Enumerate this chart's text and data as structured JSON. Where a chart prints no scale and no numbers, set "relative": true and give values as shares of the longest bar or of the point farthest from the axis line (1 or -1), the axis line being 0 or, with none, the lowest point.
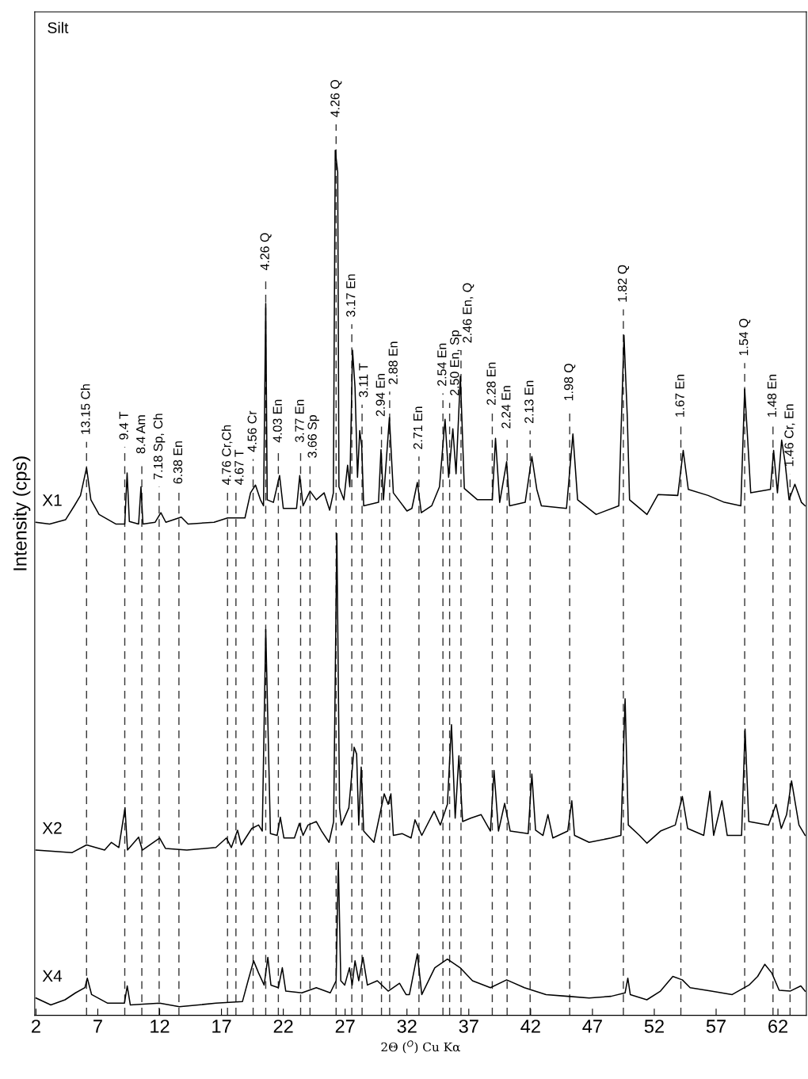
{
  "chart_data": {
    "type": "line",
    "relative": true,
    "title": "Silt",
    "xlabel": "2Θ ($^{O}$) Cu Kα",
    "ylabel": "Intensity (cps)",
    "xlim": [
      1.9,
      64.3
    ],
    "xticks": [
      2,
      7,
      12,
      17,
      22,
      27,
      32,
      37,
      42,
      47,
      52,
      57,
      62
    ],
    "grid": false,
    "legend": false,
    "tick_labels": "x",
    "series": [
      {
        "name": "X1",
        "color": "#000000",
        "x": [
          2.0,
          3.1,
          4.4,
          5.1,
          5.6,
          6.09,
          6.44,
          7.1,
          8.45,
          9.18,
          9.37,
          9.55,
          10.3,
          10.49,
          10.65,
          11.64,
          12.1,
          12.5,
          13.75,
          14.3,
          16.4,
          17.5,
          18.9,
          19.35,
          19.75,
          20.15,
          20.4,
          20.58,
          20.7,
          21.2,
          21.7,
          22.0,
          23.07,
          23.33,
          23.6,
          24.16,
          24.67,
          25.3,
          25.75,
          26.05,
          26.2,
          26.4,
          26.5,
          26.9,
          27.2,
          27.38,
          27.6,
          27.8,
          28.0,
          28.18,
          28.34,
          28.5,
          29.7,
          29.9,
          30.1,
          30.58,
          30.9,
          32.0,
          32.4,
          32.84,
          33.16,
          34.0,
          34.63,
          35.08,
          35.37,
          35.71,
          35.97,
          36.32,
          36.64,
          37.7,
          38.9,
          39.16,
          39.5,
          40.06,
          40.3,
          41.56,
          42.1,
          42.5,
          42.87,
          44.9,
          45.42,
          45.8,
          47.3,
          49.13,
          49.55,
          49.82,
          50.0,
          51.41,
          52.3,
          53.9,
          54.34,
          54.75,
          56.35,
          57.67,
          59.0,
          59.31,
          59.58,
          59.8,
          61.39,
          61.65,
          61.96,
          62.3,
          62.57,
          62.9,
          63.37,
          63.9,
          64.2
        ],
        "values": [
          0.57,
          0.568,
          0.573,
          0.589,
          0.601,
          0.633,
          0.596,
          0.579,
          0.568,
          0.568,
          0.627,
          0.571,
          0.568,
          0.611,
          0.568,
          0.57,
          0.581,
          0.57,
          0.576,
          0.568,
          0.57,
          0.575,
          0.575,
          0.604,
          0.613,
          0.596,
          0.589,
          0.823,
          0.596,
          0.593,
          0.624,
          0.586,
          0.586,
          0.624,
          0.589,
          0.606,
          0.596,
          0.604,
          0.584,
          0.604,
          1.0,
          0.975,
          0.611,
          0.596,
          0.636,
          0.611,
          0.769,
          0.726,
          0.622,
          0.676,
          0.658,
          0.589,
          0.593,
          0.654,
          0.596,
          0.691,
          0.604,
          0.583,
          0.586,
          0.616,
          0.581,
          0.589,
          0.611,
          0.689,
          0.622,
          0.678,
          0.626,
          0.739,
          0.609,
          0.596,
          0.596,
          0.667,
          0.593,
          0.64,
          0.589,
          0.593,
          0.646,
          0.608,
          0.589,
          0.586,
          0.672,
          0.596,
          0.579,
          0.589,
          0.786,
          0.691,
          0.596,
          0.579,
          0.602,
          0.601,
          0.653,
          0.608,
          0.601,
          0.593,
          0.589,
          0.724,
          0.659,
          0.604,
          0.608,
          0.653,
          0.604,
          0.665,
          0.64,
          0.596,
          0.614,
          0.593,
          0.589
        ]
      },
      {
        "name": "X2",
        "color": "#000000",
        "x": [
          2.0,
          4.9,
          6.09,
          7.55,
          8.1,
          8.7,
          9.2,
          9.4,
          10.3,
          10.6,
          12.0,
          12.47,
          14.2,
          16.55,
          17.4,
          17.8,
          18.3,
          18.6,
          19.45,
          20.0,
          20.3,
          20.58,
          20.96,
          21.5,
          21.76,
          22.05,
          22.9,
          23.3,
          23.6,
          24.0,
          24.67,
          25.1,
          25.7,
          26.07,
          26.33,
          26.55,
          26.7,
          27.3,
          27.73,
          27.93,
          28.1,
          28.3,
          28.5,
          29.33,
          30.16,
          30.48,
          30.7,
          30.9,
          31.63,
          32.33,
          32.65,
          33.2,
          34.2,
          34.7,
          35.27,
          35.6,
          35.9,
          36.2,
          36.5,
          37.15,
          38.0,
          38.75,
          39.04,
          39.4,
          39.9,
          40.35,
          41.8,
          42.1,
          42.4,
          43.0,
          43.4,
          43.8,
          45.0,
          45.33,
          45.55,
          46.73,
          48.5,
          49.3,
          49.64,
          49.9,
          50.8,
          51.4,
          52.5,
          53.7,
          54.27,
          54.7,
          56.0,
          56.5,
          56.8,
          57.47,
          57.9,
          59.06,
          59.34,
          59.64,
          61.24,
          61.84,
          62.27,
          62.7,
          63.1,
          63.7,
          64.2
        ],
        "values": [
          0.191,
          0.188,
          0.197,
          0.191,
          0.2,
          0.194,
          0.24,
          0.191,
          0.206,
          0.191,
          0.205,
          0.193,
          0.191,
          0.194,
          0.205,
          0.194,
          0.214,
          0.197,
          0.216,
          0.22,
          0.213,
          0.446,
          0.21,
          0.208,
          0.229,
          0.205,
          0.205,
          0.222,
          0.208,
          0.22,
          0.224,
          0.213,
          0.2,
          0.224,
          0.557,
          0.24,
          0.22,
          0.24,
          0.31,
          0.302,
          0.22,
          0.287,
          0.213,
          0.2,
          0.256,
          0.244,
          0.256,
          0.208,
          0.21,
          0.205,
          0.226,
          0.208,
          0.236,
          0.22,
          0.244,
          0.336,
          0.228,
          0.3,
          0.224,
          0.228,
          0.232,
          0.213,
          0.283,
          0.213,
          0.245,
          0.213,
          0.21,
          0.279,
          0.214,
          0.208,
          0.232,
          0.205,
          0.213,
          0.248,
          0.208,
          0.2,
          0.205,
          0.208,
          0.366,
          0.22,
          0.208,
          0.199,
          0.213,
          0.22,
          0.253,
          0.216,
          0.208,
          0.259,
          0.208,
          0.248,
          0.208,
          0.208,
          0.331,
          0.224,
          0.22,
          0.244,
          0.216,
          0.232,
          0.271,
          0.22,
          0.208
        ]
      },
      {
        "name": "X4",
        "color": "#000000",
        "x": [
          2.0,
          3.2,
          4.35,
          5.2,
          5.96,
          6.15,
          6.5,
          7.8,
          9.15,
          9.38,
          9.63,
          12.0,
          13.6,
          16.55,
          18.7,
          19.15,
          19.6,
          20.0,
          20.45,
          20.75,
          21.0,
          21.6,
          21.92,
          22.2,
          23.5,
          24.67,
          25.8,
          26.27,
          26.45,
          26.65,
          26.97,
          27.35,
          27.57,
          27.8,
          28.1,
          28.44,
          28.8,
          29.6,
          30.48,
          31.4,
          31.93,
          32.2,
          32.84,
          33.2,
          34.25,
          35.27,
          36.3,
          37.3,
          38.75,
          40.06,
          41.5,
          43.25,
          45.0,
          46.73,
          48.5,
          49.64,
          49.86,
          50.06,
          51.4,
          52.5,
          53.5,
          54.27,
          54.9,
          56.6,
          58.3,
          59.66,
          60.36,
          60.94,
          61.5,
          62.1,
          62.98,
          63.85,
          64.2
        ],
        "values": [
          0.02,
          0.012,
          0.018,
          0.026,
          0.032,
          0.043,
          0.024,
          0.014,
          0.014,
          0.034,
          0.012,
          0.014,
          0.01,
          0.014,
          0.016,
          0.04,
          0.063,
          0.049,
          0.035,
          0.067,
          0.035,
          0.032,
          0.055,
          0.028,
          0.026,
          0.032,
          0.026,
          0.04,
          0.177,
          0.04,
          0.035,
          0.055,
          0.035,
          0.063,
          0.04,
          0.067,
          0.035,
          0.04,
          0.028,
          0.037,
          0.024,
          0.024,
          0.071,
          0.024,
          0.055,
          0.065,
          0.055,
          0.04,
          0.032,
          0.041,
          0.032,
          0.024,
          0.022,
          0.02,
          0.022,
          0.026,
          0.043,
          0.024,
          0.018,
          0.028,
          0.045,
          0.041,
          0.032,
          0.028,
          0.024,
          0.035,
          0.045,
          0.059,
          0.049,
          0.029,
          0.028,
          0.034,
          0.028
        ]
      }
    ],
    "ref_lines": [
      {
        "axis": "x",
        "value": 6.09,
        "label": "13.15 Ch",
        "line_style": "dashed"
      },
      {
        "axis": "x",
        "value": 9.18,
        "label": "9.4 T",
        "line_style": "dashed"
      },
      {
        "axis": "x",
        "value": 10.56,
        "label": "8.4 Am",
        "line_style": "dashed"
      },
      {
        "axis": "x",
        "value": 11.96,
        "label": "7.18 Sp, Ch",
        "line_style": "dashed"
      },
      {
        "axis": "x",
        "value": 13.56,
        "label": "6.38 En",
        "line_style": "dashed"
      },
      {
        "axis": "x",
        "value": 17.49,
        "label": "4.76 Cr,Ch",
        "line_style": "dashed"
      },
      {
        "axis": "x",
        "value": 18.17,
        "label": "4.67 T",
        "line_style": "dashed"
      },
      {
        "axis": "x",
        "value": 19.56,
        "label": "4.56 Cr",
        "line_style": "dashed"
      },
      {
        "axis": "x",
        "value": 20.58,
        "label": "4.26 Q",
        "line_style": "dashed"
      },
      {
        "axis": "x",
        "value": 21.6,
        "label": "4.03 En",
        "line_style": "dashed"
      },
      {
        "axis": "x",
        "value": 23.4,
        "label": "3.77 En",
        "line_style": "dashed"
      },
      {
        "axis": "x",
        "value": 24.16,
        "label": "3.66 Sp",
        "line_style": "dashed"
      },
      {
        "axis": "x",
        "value": 26.27,
        "label": "4.26 Q",
        "line_style": "dashed"
      },
      {
        "axis": "x",
        "value": 27.54,
        "label": "3.17 En",
        "line_style": "dashed"
      },
      {
        "axis": "x",
        "value": 28.37,
        "label": "3.11 T",
        "line_style": "dashed"
      },
      {
        "axis": "x",
        "value": 29.94,
        "label": "2.94 En",
        "line_style": "dashed"
      },
      {
        "axis": "x",
        "value": 30.6,
        "label": "2.88 En",
        "line_style": "dashed"
      },
      {
        "axis": "x",
        "value": 32.97,
        "label": "2.71 En",
        "line_style": "dashed"
      },
      {
        "axis": "x",
        "value": 34.91,
        "label": "2.54 En",
        "line_style": "dashed"
      },
      {
        "axis": "x",
        "value": 35.45,
        "label": "2.50 En, Sp",
        "line_style": "dashed"
      },
      {
        "axis": "x",
        "value": 36.37,
        "label": "2.46 En, Q",
        "line_style": "dashed"
      },
      {
        "axis": "x",
        "value": 38.9,
        "label": "2.28 En",
        "line_style": "dashed"
      },
      {
        "axis": "x",
        "value": 40.1,
        "label": "2.24 En",
        "line_style": "dashed"
      },
      {
        "axis": "x",
        "value": 41.96,
        "label": "2.13 En",
        "line_style": "dashed"
      },
      {
        "axis": "x",
        "value": 45.16,
        "label": "1.98 Q",
        "line_style": "dashed"
      },
      {
        "axis": "x",
        "value": 49.5,
        "label": "1.82 Q",
        "line_style": "dashed"
      },
      {
        "axis": "x",
        "value": 54.15,
        "label": "1.67 En",
        "line_style": "dashed"
      },
      {
        "axis": "x",
        "value": 59.31,
        "label": "1.54 Q",
        "line_style": "dashed"
      },
      {
        "axis": "x",
        "value": 61.6,
        "label": "1.48 En",
        "line_style": "dashed"
      },
      {
        "axis": "x",
        "value": 62.98,
        "label": "1.46 Cr, En",
        "line_style": "dashed"
      }
    ]
  }
}
